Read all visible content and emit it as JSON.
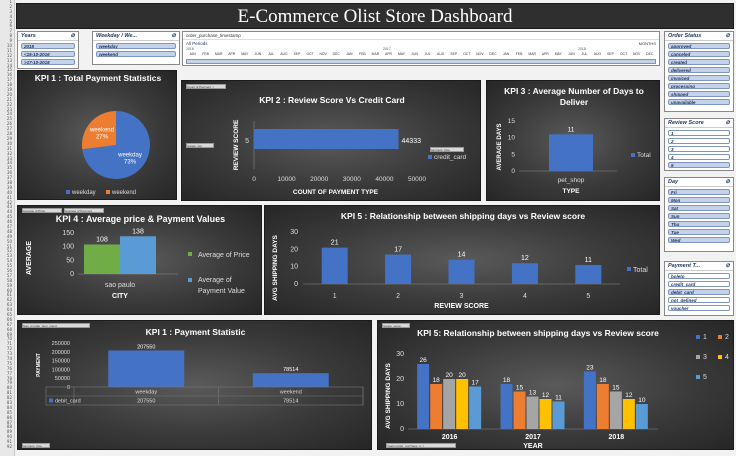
{
  "dashboard_title": "E-Commerce  Olist Store Dashboard",
  "row_numbers": [
    "1",
    "2",
    "3",
    "4",
    "5",
    "6",
    "7",
    "8",
    "9",
    "10",
    "11",
    "12",
    "13",
    "14",
    "15",
    "16",
    "17",
    "18",
    "19",
    "20",
    "21",
    "22",
    "23",
    "24",
    "25",
    "26",
    "27",
    "28",
    "29",
    "30",
    "31",
    "32",
    "33",
    "34",
    "35",
    "36",
    "37",
    "38",
    "39",
    "40",
    "41",
    "42",
    "43",
    "44",
    "45",
    "46",
    "47",
    "48",
    "49",
    "50",
    "51",
    "52",
    "53",
    "54",
    "55",
    "56",
    "57",
    "58",
    "59",
    "60",
    "61",
    "62",
    "63",
    "64",
    "65",
    "66",
    "67",
    "68",
    "69",
    "70",
    "71",
    "72",
    "73",
    "74",
    "75",
    "76",
    "77",
    "78",
    "79",
    "80",
    "81",
    "82",
    "83",
    "84",
    "85",
    "86",
    "87",
    "88",
    "89",
    "90",
    "91",
    "92"
  ],
  "slicers": {
    "years": {
      "title": "Years",
      "items": [
        "2018",
        "<15-10-2016",
        ">17-10-2018"
      ]
    },
    "weekday": {
      "title": "Weekday / We...",
      "items": [
        "weekday",
        "weekend"
      ]
    },
    "timeline": {
      "field": "order_purchase_timestamp",
      "label": "All Periods",
      "unit": "MONTHS",
      "years": [
        "2016",
        "2017",
        "2018"
      ],
      "months": [
        "JAN",
        "FEB",
        "MAR",
        "APR",
        "MAY",
        "JUN",
        "JUL",
        "AUG",
        "SEP",
        "OCT",
        "NOV",
        "DEC",
        "JAN",
        "FEB",
        "MAR",
        "APR",
        "MAY",
        "JUN",
        "JUL",
        "AUG",
        "SEP",
        "OCT",
        "NOV",
        "DEC",
        "JAN",
        "FEB",
        "MAR",
        "APR",
        "MAY",
        "JUN",
        "JUL",
        "AUG",
        "SEP",
        "OCT",
        "NOV",
        "DEC"
      ]
    },
    "order_status": {
      "title": "Order Status",
      "items": [
        "approved",
        "canceled",
        "created",
        "delivered",
        "invoiced",
        "processing",
        "shipped",
        "unavailable"
      ]
    },
    "review_score": {
      "title": "Review Score",
      "items": [
        "1",
        "2",
        "3",
        "4",
        "5"
      ]
    },
    "day": {
      "title": "Day",
      "items": [
        "Fri",
        "Mon",
        "Sat",
        "Sun",
        "Thu",
        "Tue",
        "Wed"
      ]
    },
    "payment_type": {
      "title": "Payment T...",
      "items": [
        "boleto",
        "credit_card",
        "debit_card",
        "not_defined",
        "voucher"
      ]
    }
  },
  "chart_data": [
    {
      "id": "kpi1_pie",
      "type": "pie",
      "title": "KPI 1 : Total Payment Statistics",
      "categories": [
        "weekday",
        "weekend"
      ],
      "values": [
        73,
        27
      ],
      "labels": [
        "weekday 73%",
        "weekend 27%"
      ],
      "colors": [
        "#4472c4",
        "#ed7d31"
      ],
      "legend": "bottom"
    },
    {
      "id": "kpi2_bar",
      "type": "bar",
      "orientation": "horizontal",
      "title": "KPI 2 : Review Score Vs Credit Card",
      "categories": [
        "5"
      ],
      "series": [
        {
          "name": "credit_card",
          "values": [
            44333
          ]
        }
      ],
      "xlabel": "COUNT OF PAYMENT TYPE",
      "ylabel": "REVIEW SCORE",
      "xticks": [
        "0",
        "10000",
        "20000",
        "30000",
        "40000",
        "50000"
      ],
      "xlim": [
        0,
        50000
      ],
      "legend": "right",
      "field_buttons": [
        "Count of Payment_t",
        "review_sco",
        "payment_type"
      ]
    },
    {
      "id": "kpi3_bar",
      "type": "bar",
      "title": "KPI 3 : Average Number of Days to Deliver",
      "categories": [
        "pet_shop"
      ],
      "series": [
        {
          "name": "Total",
          "values": [
            11
          ]
        }
      ],
      "xlabel": "TYPE",
      "ylabel": "AVERAGE DAYS",
      "yticks": [
        "0",
        "5",
        "10",
        "15"
      ],
      "ylim": [
        0,
        15
      ],
      "legend": "right"
    },
    {
      "id": "kpi4_bar",
      "type": "bar",
      "title": "KPI 4 : Average price & Payment Values",
      "categories": [
        "sao paulo"
      ],
      "series": [
        {
          "name": "Average of Price",
          "values": [
            108
          ]
        },
        {
          "name": "Average of Payment Value",
          "values": [
            138
          ]
        }
      ],
      "xlabel": "CITY",
      "ylabel": "AVERAGE",
      "yticks": [
        "0",
        "50",
        "100",
        "150"
      ],
      "ylim": [
        0,
        150
      ],
      "legend": "right",
      "colors": [
        "#70ad47",
        "#5b9bd5"
      ],
      "field_buttons": [
        "Average of Price",
        "Average of Payment"
      ]
    },
    {
      "id": "kpi5_bar",
      "type": "bar",
      "title": "KPI 5 : Relationship between shipping days vs Review score",
      "categories": [
        "1",
        "2",
        "3",
        "4",
        "5"
      ],
      "series": [
        {
          "name": "Total",
          "values": [
            21,
            17,
            14,
            12,
            11
          ]
        }
      ],
      "xlabel": "REVIEW SCORE",
      "ylabel": "AVG SHIPPING DAYS",
      "yticks": [
        "0",
        "10",
        "20",
        "30"
      ],
      "ylim": [
        0,
        30
      ],
      "legend": "right"
    },
    {
      "id": "kpi1_table",
      "type": "bar",
      "title": "KPI 1 : Payment Statistic",
      "categories": [
        "weekday",
        "weekend"
      ],
      "series": [
        {
          "name": "debit_card",
          "values": [
            207550,
            78514
          ]
        }
      ],
      "ylabel": "PAYMENT",
      "yticks": [
        "0",
        "50000",
        "100000",
        "150000",
        "200000",
        "250000"
      ],
      "ylim": [
        0,
        250000
      ],
      "table": true,
      "field_buttons": [
        "Sum of order_item_count",
        "payment_type"
      ]
    },
    {
      "id": "kpi5_grouped",
      "type": "bar",
      "title": "KPI 5: Relationship between shipping days vs  Review score",
      "categories": [
        "2016",
        "2017",
        "2018"
      ],
      "series": [
        {
          "name": "1",
          "values": [
            26,
            18,
            23
          ]
        },
        {
          "name": "2",
          "values": [
            18,
            15,
            18
          ]
        },
        {
          "name": "3",
          "values": [
            20,
            13,
            15
          ]
        },
        {
          "name": "4",
          "values": [
            20,
            12,
            12
          ]
        },
        {
          "name": "5",
          "values": [
            17,
            11,
            10
          ]
        }
      ],
      "colors": [
        "#4472c4",
        "#ed7d31",
        "#a5a5a5",
        "#ffc000",
        "#5b9bd5"
      ],
      "xlabel": "YEAR",
      "ylabel": "AVG SHIPPING DAYS",
      "yticks": [
        "0",
        "10",
        "20",
        "30"
      ],
      "ylim": [
        0,
        30
      ],
      "legend": "right",
      "field_buttons": [
        "review_score",
        "Years (order_purchase_ti...)"
      ]
    }
  ]
}
